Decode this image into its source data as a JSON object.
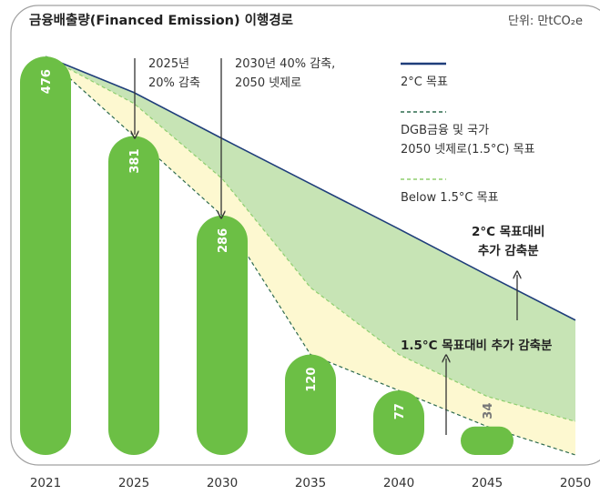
{
  "chart_data": {
    "type": "bar",
    "title": "금융배출량(Financed Emission) 이행경로",
    "unit": "단위: 만tCO₂e",
    "categories": [
      "2021",
      "2025",
      "2030",
      "2035",
      "2040",
      "2045",
      "2050"
    ],
    "values": [
      476,
      381,
      286,
      120,
      77,
      34,
      null
    ],
    "color": "#6cbf45",
    "ylim": [
      0,
      500
    ],
    "series": [
      {
        "name": "2°C 목표",
        "color": "#1f3e7a",
        "style": "solid",
        "values": [
          476,
          433,
          378,
          324,
          270,
          215,
          161
        ]
      },
      {
        "name": "DGB금융 및 국가\n2050 넷제로(1.5°C) 목표",
        "color": "#2e6b4f",
        "style": "dashed",
        "values": [
          476,
          381,
          286,
          120,
          77,
          34,
          0
        ]
      },
      {
        "name": "Below 1.5°C 목표",
        "color": "#8fcf6f",
        "style": "dashed",
        "values": [
          476,
          420,
          330,
          200,
          120,
          70,
          40
        ]
      }
    ],
    "annotations": [
      "2025년\n20% 감축",
      "2030년 40% 감축,\n2050 넷제로",
      "2°C 목표대비\n추가 감축분",
      "1.5°C 목표대비 추가 감축분"
    ]
  }
}
